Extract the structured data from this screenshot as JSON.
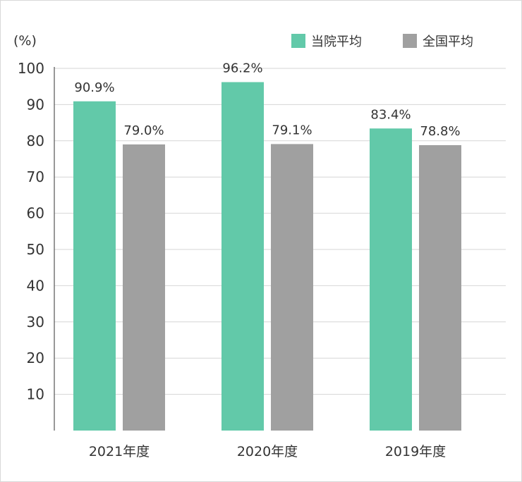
{
  "chart_data": {
    "type": "bar",
    "unit_label": "(%)",
    "categories": [
      "2021年度",
      "2020年度",
      "2019年度"
    ],
    "series": [
      {
        "name": "当院平均",
        "color": "#62c9a9",
        "values": [
          90.9,
          96.2,
          83.4
        ],
        "labels": [
          "90.9%",
          "96.2%",
          "83.4%"
        ]
      },
      {
        "name": "全国平均",
        "color": "#a0a0a0",
        "values": [
          79.0,
          79.1,
          78.8
        ],
        "labels": [
          "79.0%",
          "79.1%",
          "78.8%"
        ]
      }
    ],
    "y_ticks": [
      10,
      20,
      30,
      40,
      50,
      60,
      70,
      80,
      90,
      100
    ],
    "ylim": [
      0,
      100
    ],
    "grid": true,
    "legend_position": "top-right"
  }
}
